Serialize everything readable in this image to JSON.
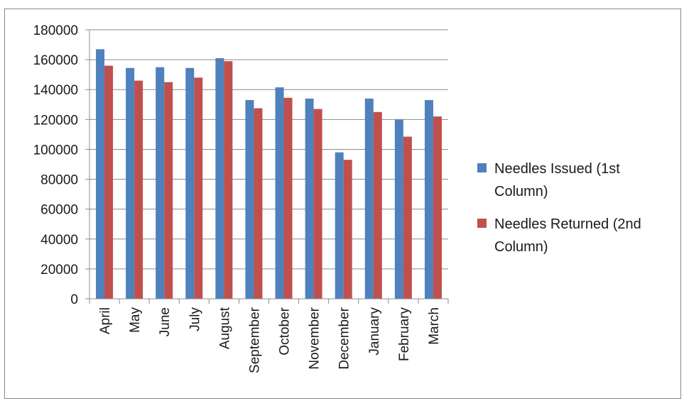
{
  "chart_data": {
    "type": "bar",
    "categories": [
      "April",
      "May",
      "June",
      "July",
      "August",
      "September",
      "October",
      "November",
      "December",
      "January",
      "February",
      "March"
    ],
    "series": [
      {
        "name": "Needles Issued (1st Column)",
        "legend_lines": [
          "Needles Issued (1st",
          "Column)"
        ],
        "color": "#4F81BD",
        "values": [
          167000,
          154500,
          155000,
          154500,
          161000,
          133000,
          141500,
          134000,
          98000,
          134000,
          120000,
          133000
        ]
      },
      {
        "name": "Needles Returned (2nd Column)",
        "legend_lines": [
          "Needles Returned (2nd",
          "Column)"
        ],
        "color": "#C0504D",
        "values": [
          156000,
          146000,
          145000,
          148000,
          159000,
          127500,
          134500,
          127000,
          93000,
          125000,
          108500,
          122000
        ]
      }
    ],
    "ylim": [
      0,
      180000
    ],
    "yticks": [
      "0",
      "20000",
      "40000",
      "60000",
      "80000",
      "100000",
      "120000",
      "140000",
      "160000",
      "180000"
    ],
    "grid": true,
    "legend_position": "right"
  }
}
